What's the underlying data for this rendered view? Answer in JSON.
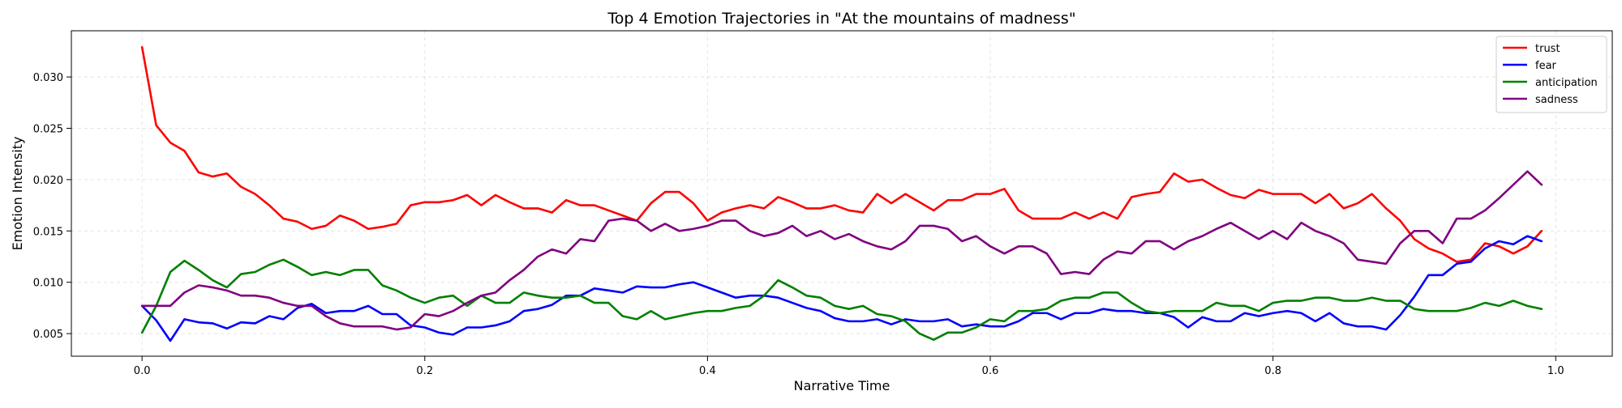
{
  "chart_data": {
    "type": "line",
    "title": "Top 4 Emotion Trajectories in \"At the mountains of madness\"",
    "xlabel": "Narrative Time",
    "ylabel": "Emotion Intensity",
    "xlim": [
      -0.05,
      1.04
    ],
    "ylim": [
      0.0028,
      0.0345
    ],
    "xticks": [
      0.0,
      0.2,
      0.4,
      0.6,
      0.8,
      1.0
    ],
    "xtick_labels": [
      "0.0",
      "0.2",
      "0.4",
      "0.6",
      "0.8",
      "1.0"
    ],
    "yticks": [
      0.005,
      0.01,
      0.015,
      0.02,
      0.025,
      0.03
    ],
    "ytick_labels": [
      "0.005",
      "0.010",
      "0.015",
      "0.020",
      "0.025",
      "0.030"
    ],
    "grid": true,
    "legend_position": "top-right",
    "x_step": 0.01,
    "series": [
      {
        "name": "trust",
        "color": "#ff0000",
        "values": [
          0.0329,
          0.0253,
          0.0236,
          0.0228,
          0.0207,
          0.0203,
          0.0206,
          0.0193,
          0.0186,
          0.0175,
          0.0162,
          0.0159,
          0.0152,
          0.0155,
          0.0165,
          0.016,
          0.0152,
          0.0154,
          0.0157,
          0.0175,
          0.0178,
          0.0178,
          0.018,
          0.0185,
          0.0175,
          0.0185,
          0.0178,
          0.0172,
          0.0172,
          0.0168,
          0.018,
          0.0175,
          0.0175,
          0.017,
          0.0165,
          0.016,
          0.0177,
          0.0188,
          0.0188,
          0.0177,
          0.016,
          0.0168,
          0.0172,
          0.0175,
          0.0172,
          0.0183,
          0.0178,
          0.0172,
          0.0172,
          0.0175,
          0.017,
          0.0168,
          0.0186,
          0.0177,
          0.0186,
          0.0178,
          0.017,
          0.018,
          0.018,
          0.0186,
          0.0186,
          0.0191,
          0.017,
          0.0162,
          0.0162,
          0.0162,
          0.0168,
          0.0162,
          0.0168,
          0.0162,
          0.0183,
          0.0186,
          0.0188,
          0.0206,
          0.0198,
          0.02,
          0.0192,
          0.0185,
          0.0182,
          0.019,
          0.0186,
          0.0186,
          0.0186,
          0.0177,
          0.0186,
          0.0172,
          0.0177,
          0.0186,
          0.0172,
          0.016,
          0.0142,
          0.0133,
          0.0128,
          0.012,
          0.0122,
          0.0138,
          0.0135,
          0.0128,
          0.0135,
          0.015
        ]
      },
      {
        "name": "fear",
        "color": "#0000ff",
        "values": [
          0.0077,
          0.0063,
          0.0043,
          0.0064,
          0.0061,
          0.006,
          0.0055,
          0.0061,
          0.006,
          0.0067,
          0.0064,
          0.0075,
          0.0079,
          0.007,
          0.0072,
          0.0072,
          0.0077,
          0.0069,
          0.0069,
          0.0058,
          0.0056,
          0.0051,
          0.0049,
          0.0056,
          0.0056,
          0.0058,
          0.0062,
          0.0072,
          0.0074,
          0.0078,
          0.0087,
          0.0087,
          0.0094,
          0.0092,
          0.009,
          0.0096,
          0.0095,
          0.0095,
          0.0098,
          0.01,
          0.0095,
          0.009,
          0.0085,
          0.0087,
          0.0087,
          0.0085,
          0.008,
          0.0075,
          0.0072,
          0.0065,
          0.0062,
          0.0062,
          0.0064,
          0.0059,
          0.0064,
          0.0062,
          0.0062,
          0.0064,
          0.0057,
          0.0059,
          0.0057,
          0.0057,
          0.0062,
          0.007,
          0.007,
          0.0064,
          0.007,
          0.007,
          0.0074,
          0.0072,
          0.0072,
          0.007,
          0.007,
          0.0066,
          0.0056,
          0.0066,
          0.0062,
          0.0062,
          0.007,
          0.0067,
          0.007,
          0.0072,
          0.007,
          0.0062,
          0.007,
          0.006,
          0.0057,
          0.0057,
          0.0054,
          0.0068,
          0.0086,
          0.0107,
          0.0107,
          0.0118,
          0.012,
          0.0133,
          0.014,
          0.0137,
          0.0145,
          0.014
        ]
      },
      {
        "name": "anticipation",
        "color": "#008000",
        "values": [
          0.0051,
          0.0077,
          0.011,
          0.0121,
          0.0112,
          0.0102,
          0.0095,
          0.0108,
          0.011,
          0.0117,
          0.0122,
          0.0115,
          0.0107,
          0.011,
          0.0107,
          0.0112,
          0.0112,
          0.0097,
          0.0092,
          0.0085,
          0.008,
          0.0085,
          0.0087,
          0.0077,
          0.0087,
          0.008,
          0.008,
          0.009,
          0.0087,
          0.0085,
          0.0085,
          0.0087,
          0.008,
          0.008,
          0.0067,
          0.0064,
          0.0072,
          0.0064,
          0.0067,
          0.007,
          0.0072,
          0.0072,
          0.0075,
          0.0077,
          0.0087,
          0.0102,
          0.0095,
          0.0087,
          0.0085,
          0.0077,
          0.0074,
          0.0077,
          0.0069,
          0.0067,
          0.0062,
          0.005,
          0.0044,
          0.0051,
          0.0051,
          0.0056,
          0.0064,
          0.0062,
          0.0072,
          0.0072,
          0.0074,
          0.0082,
          0.0085,
          0.0085,
          0.009,
          0.009,
          0.008,
          0.0072,
          0.007,
          0.0072,
          0.0072,
          0.0072,
          0.008,
          0.0077,
          0.0077,
          0.0072,
          0.008,
          0.0082,
          0.0082,
          0.0085,
          0.0085,
          0.0082,
          0.0082,
          0.0085,
          0.0082,
          0.0082,
          0.0074,
          0.0072,
          0.0072,
          0.0072,
          0.0075,
          0.008,
          0.0077,
          0.0082,
          0.0077,
          0.0074
        ]
      },
      {
        "name": "sadness",
        "color": "#800080",
        "values": [
          0.0077,
          0.0077,
          0.0077,
          0.009,
          0.0097,
          0.0095,
          0.0092,
          0.0087,
          0.0087,
          0.0085,
          0.008,
          0.0077,
          0.0077,
          0.0067,
          0.006,
          0.0057,
          0.0057,
          0.0057,
          0.0054,
          0.0056,
          0.0069,
          0.0067,
          0.0072,
          0.008,
          0.0087,
          0.009,
          0.0102,
          0.0112,
          0.0125,
          0.0132,
          0.0128,
          0.0142,
          0.014,
          0.016,
          0.0162,
          0.016,
          0.015,
          0.0157,
          0.015,
          0.0152,
          0.0155,
          0.016,
          0.016,
          0.015,
          0.0145,
          0.0148,
          0.0155,
          0.0145,
          0.015,
          0.0142,
          0.0147,
          0.014,
          0.0135,
          0.0132,
          0.014,
          0.0155,
          0.0155,
          0.0152,
          0.014,
          0.0145,
          0.0135,
          0.0128,
          0.0135,
          0.0135,
          0.0128,
          0.0108,
          0.011,
          0.0108,
          0.0122,
          0.013,
          0.0128,
          0.014,
          0.014,
          0.0132,
          0.014,
          0.0145,
          0.0152,
          0.0158,
          0.015,
          0.0142,
          0.015,
          0.0142,
          0.0158,
          0.015,
          0.0145,
          0.0138,
          0.0122,
          0.012,
          0.0118,
          0.0138,
          0.015,
          0.015,
          0.0138,
          0.0162,
          0.0162,
          0.017,
          0.0182,
          0.0195,
          0.0208,
          0.0195
        ]
      }
    ]
  }
}
